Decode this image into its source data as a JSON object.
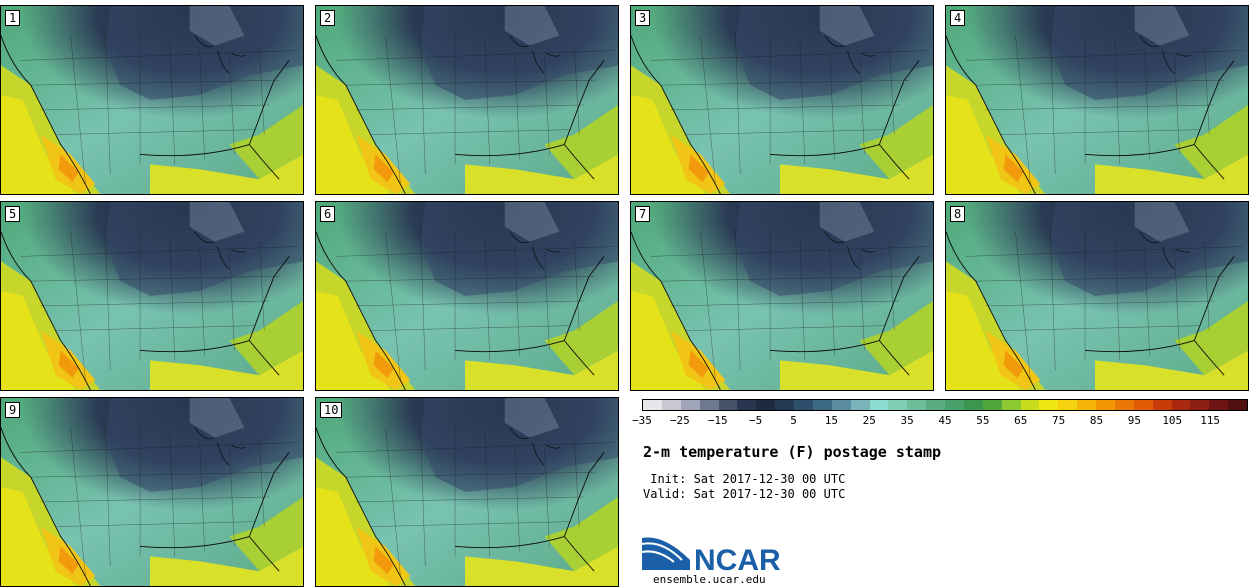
{
  "title": "2-m temperature (F) postage stamp",
  "init_line": " Init: Sat 2017-12-30 00 UTC",
  "valid_line": "Valid: Sat 2017-12-30 00 UTC",
  "logo_text": "NCAR",
  "logo_url": "ensemble.ucar.edu",
  "members": [
    "1",
    "2",
    "3",
    "4",
    "5",
    "6",
    "7",
    "8",
    "9",
    "10"
  ],
  "colorbar": {
    "units": "F",
    "tick_labels": [
      "−35",
      "−25",
      "−15",
      "−5",
      "5",
      "15",
      "25",
      "35",
      "45",
      "55",
      "65",
      "75",
      "85",
      "95",
      "105",
      "115"
    ],
    "colors": [
      "#e6e6eb",
      "#c8c8d2",
      "#a0a5b9",
      "#6e7891",
      "#465069",
      "#2a3650",
      "#1e2a40",
      "#243a55",
      "#2d4f6b",
      "#3c6982",
      "#5a8ca0",
      "#78b4b9",
      "#8cdcd2",
      "#7fcfb4",
      "#6dbf9c",
      "#5aad82",
      "#48a06a",
      "#3c9650",
      "#50a83c",
      "#8cc832",
      "#c8dc1e",
      "#f0e614",
      "#f5d20f",
      "#f5b40a",
      "#f59605",
      "#eb7805",
      "#e15a05",
      "#c83c0a",
      "#aa280f",
      "#8c1e14",
      "#6e1414",
      "#501010"
    ]
  }
}
